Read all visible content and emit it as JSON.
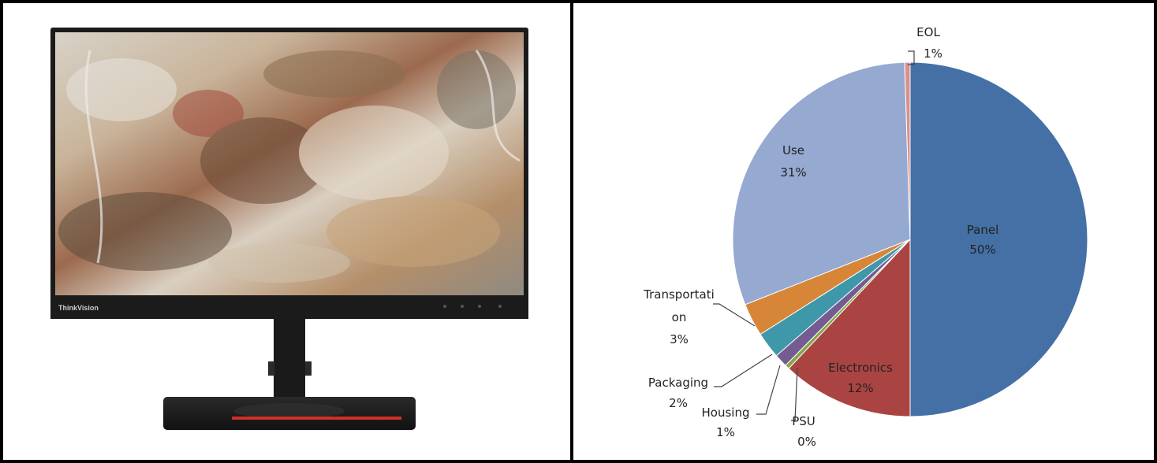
{
  "product_photo": {
    "brand_text": "ThinkVision"
  },
  "chart_data": {
    "type": "pie",
    "title": "",
    "categories": [
      "Panel",
      "Electronics",
      "PSU",
      "Housing",
      "Packaging",
      "Transportation",
      "Use",
      "EOL"
    ],
    "values": [
      50,
      12,
      0.4,
      1.2,
      2.4,
      3,
      30.5,
      0.5
    ],
    "slices": [
      {
        "name": "Panel",
        "pct_label": "50%",
        "color": "#4470a6"
      },
      {
        "name": "Electronics",
        "pct_label": "12%",
        "color": "#aa4442"
      },
      {
        "name": "PSU",
        "pct_label": "0%",
        "color": "#87a448"
      },
      {
        "name": "Housing",
        "pct_label": "1%",
        "color": "#745c93"
      },
      {
        "name": "Packaging",
        "pct_label": "2%",
        "color": "#3f97aa"
      },
      {
        "name": "Transportation",
        "pct_label": "3%",
        "color": "#d78638"
      },
      {
        "name": "Use",
        "pct_label": "31%",
        "color": "#95a9d1"
      },
      {
        "name": "EOL",
        "pct_label": "1%",
        "color": "#d9918f"
      }
    ],
    "labels": {
      "panel": {
        "name": "Panel",
        "pct": "50%"
      },
      "electronics": {
        "name": "Electronics",
        "pct": "12%"
      },
      "psu": {
        "name": "PSU",
        "pct": "0%"
      },
      "housing": {
        "name": "Housing",
        "pct": "1%"
      },
      "packaging": {
        "name": "Packaging",
        "pct": "2%"
      },
      "transportation": {
        "line1": "Transportati",
        "line2": "on",
        "pct": "3%"
      },
      "use": {
        "name": "Use",
        "pct": "31%"
      },
      "eol": {
        "name": "EOL",
        "pct": "1%"
      }
    },
    "legend": "none"
  }
}
